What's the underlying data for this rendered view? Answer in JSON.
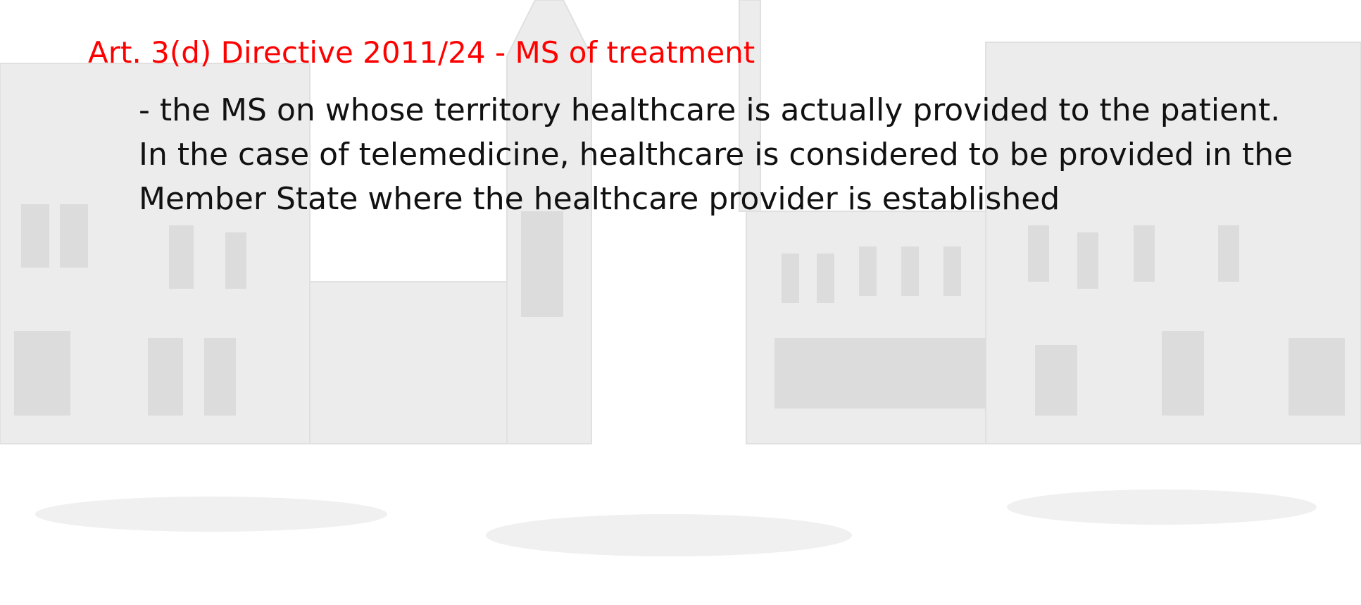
{
  "slide": {
    "title": "Art. 3(d) Directive 2011/24 - MS of treatment",
    "lines": [
      "- the MS on whose territory healthcare is actually provided to the patient.",
      "In the case of telemedicine, healthcare is considered to be provided in the",
      "Member State where the healthcare provider is established"
    ]
  }
}
